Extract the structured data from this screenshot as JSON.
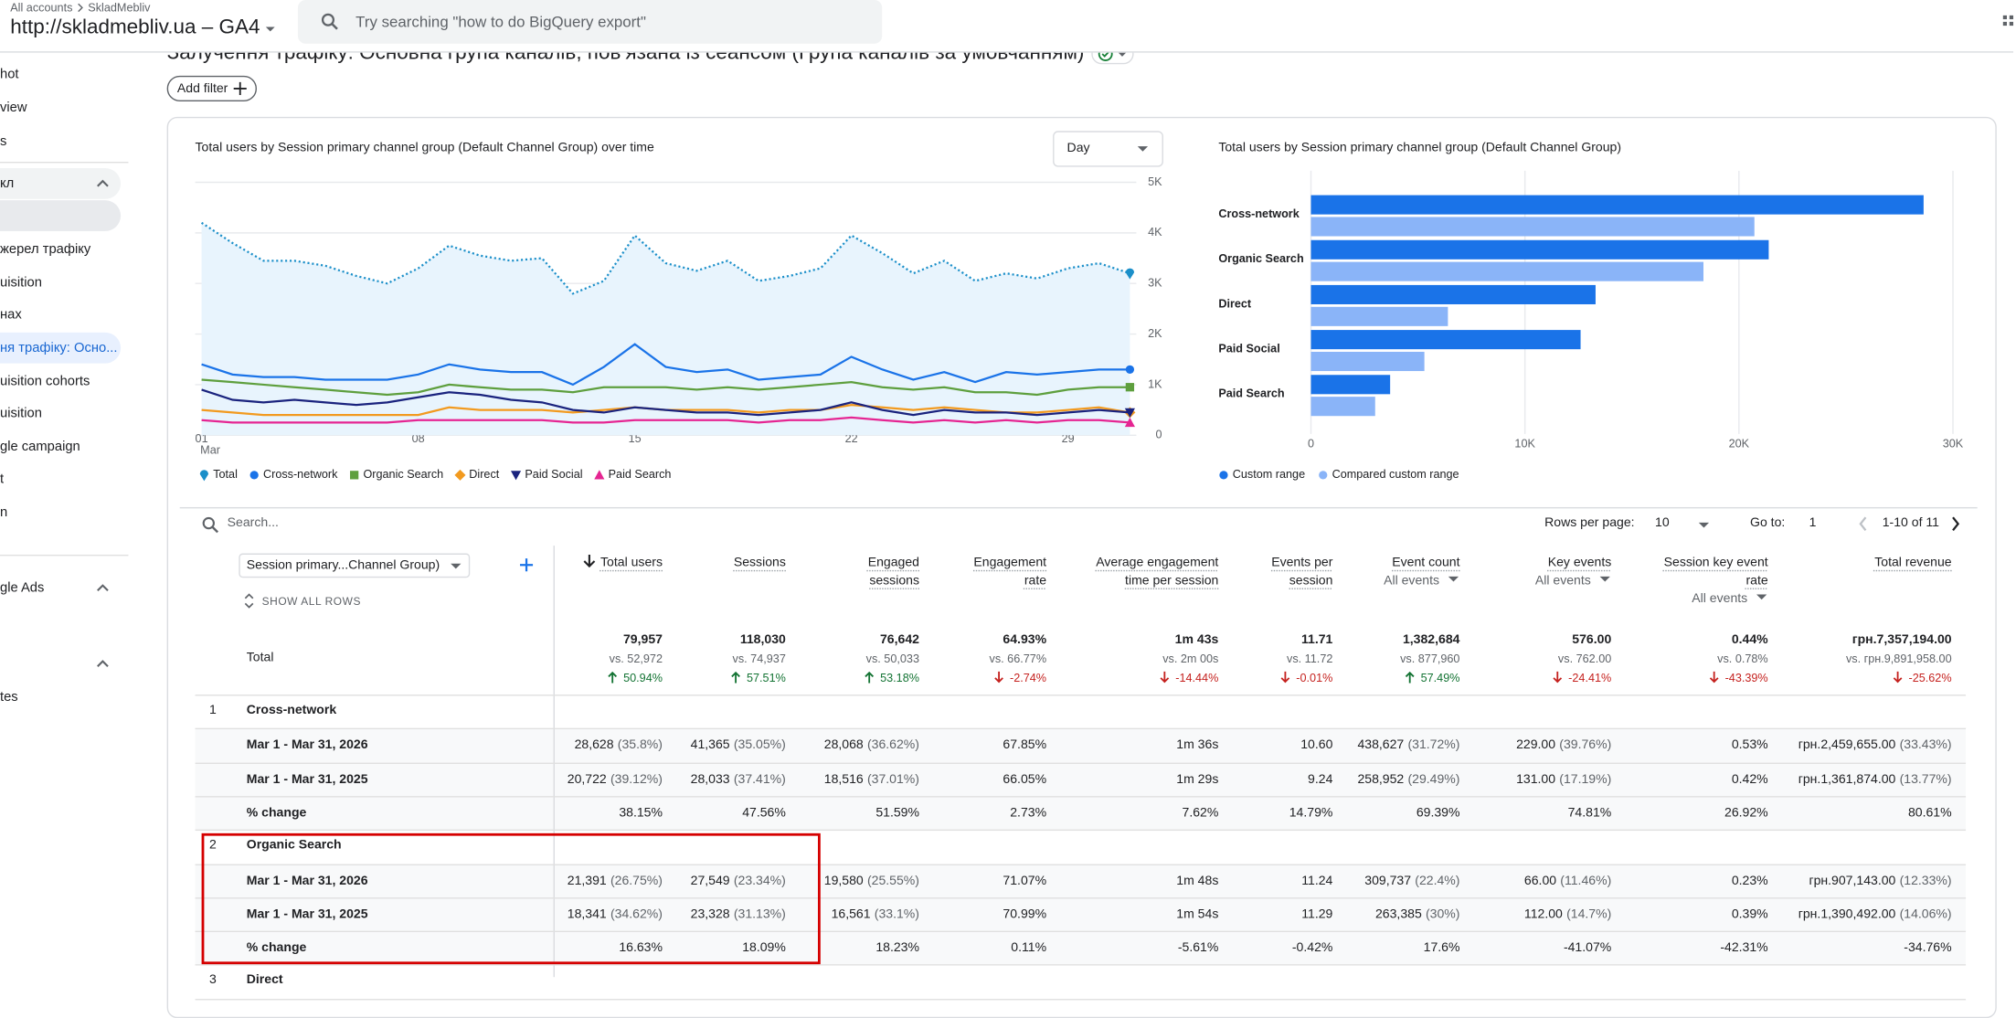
{
  "header": {
    "breadcrumb": [
      "All accounts",
      "SkladMebliv"
    ],
    "property": "http://skladmebliv.ua – GA4",
    "search_placeholder": "Try searching \"how to do BigQuery export\""
  },
  "sidebar": {
    "items": [
      {
        "text": "hot",
        "kind": "item"
      },
      {
        "text": "view",
        "kind": "item"
      },
      {
        "text": "s",
        "kind": "item"
      },
      {
        "text": "кл",
        "kind": "section"
      },
      {
        "kind": "selected"
      },
      {
        "text": "жерел трафіку",
        "kind": "item"
      },
      {
        "text": "uisition",
        "kind": "item"
      },
      {
        "text": "нах",
        "kind": "item"
      },
      {
        "text": "ня трафіку: Осно...",
        "kind": "active"
      },
      {
        "text": "uisition cohorts",
        "kind": "item"
      },
      {
        "text": "uisition",
        "kind": "item"
      },
      {
        "text": "gle campaign",
        "kind": "item"
      },
      {
        "text": "t",
        "kind": "item"
      },
      {
        "text": "n",
        "kind": "item"
      },
      {
        "text": "gle Ads",
        "kind": "section"
      },
      {
        "kind": "section"
      },
      {
        "text": "tes",
        "kind": "item"
      }
    ]
  },
  "page": {
    "title": "Залучення трафіку: Основна група каналів, пов’язана із сеансом (Група каналів за умовчанням)",
    "add_filter": "Add filter"
  },
  "chart_data": [
    {
      "type": "line",
      "title": "Total users by Session primary channel group (Default Channel Group) over time",
      "interval": "Day",
      "x": [
        1,
        2,
        3,
        4,
        5,
        6,
        7,
        8,
        9,
        10,
        11,
        12,
        13,
        14,
        15,
        16,
        17,
        18,
        19,
        20,
        21,
        22,
        23,
        24,
        25,
        26,
        27,
        28,
        29,
        30,
        31
      ],
      "xlim": [
        1,
        31
      ],
      "xticks": [
        {
          "value": 1,
          "label": "01"
        },
        {
          "value": 8,
          "label": "08"
        },
        {
          "value": 15,
          "label": "15"
        },
        {
          "value": 22,
          "label": "22"
        },
        {
          "value": 29,
          "label": "29"
        }
      ],
      "x_tick_sublabel": "Mar",
      "ylim": [
        0,
        5000
      ],
      "yticks": [
        0,
        {
          "value": 1000,
          "label": "1K"
        },
        {
          "value": 2000,
          "label": "2K"
        },
        {
          "value": 3000,
          "label": "3K"
        },
        {
          "value": 4000,
          "label": "4K"
        },
        {
          "value": 5000,
          "label": "5K"
        }
      ],
      "y_axis_side": "right",
      "grid": true,
      "series": [
        {
          "name": "Total",
          "color": "#1b8fc9",
          "marker": "pin",
          "line_style": "dotted",
          "area_color": "#e8f4fd",
          "values": [
            4200,
            3800,
            3450,
            3450,
            3350,
            3150,
            3000,
            3300,
            3750,
            3550,
            3450,
            3500,
            2800,
            3050,
            3950,
            3400,
            3250,
            3450,
            3050,
            3150,
            3300,
            3950,
            3600,
            3200,
            3450,
            3050,
            3200,
            3100,
            3300,
            3400,
            3200
          ]
        },
        {
          "name": "Cross-network",
          "color": "#1a73e8",
          "marker": "circle",
          "values": [
            1400,
            1200,
            1150,
            1150,
            1100,
            1100,
            1100,
            1200,
            1400,
            1300,
            1250,
            1250,
            1000,
            1350,
            1800,
            1350,
            1250,
            1300,
            1100,
            1150,
            1200,
            1550,
            1300,
            1100,
            1250,
            1050,
            1250,
            1200,
            1250,
            1300,
            1300
          ]
        },
        {
          "name": "Organic Search",
          "color": "#5e9f3e",
          "marker": "square",
          "values": [
            1100,
            1050,
            1000,
            950,
            900,
            850,
            800,
            850,
            1000,
            950,
            900,
            900,
            850,
            950,
            950,
            950,
            900,
            950,
            900,
            950,
            1000,
            1050,
            950,
            900,
            950,
            850,
            850,
            800,
            900,
            950,
            950
          ]
        },
        {
          "name": "Direct",
          "color": "#f29a1f",
          "marker": "diamond",
          "values": [
            500,
            450,
            400,
            400,
            400,
            400,
            400,
            400,
            550,
            500,
            500,
            500,
            450,
            500,
            550,
            500,
            500,
            500,
            450,
            500,
            500,
            600,
            550,
            500,
            550,
            500,
            450,
            450,
            500,
            550,
            450
          ]
        },
        {
          "name": "Paid Social",
          "color": "#1a237e",
          "marker": "triangle-down",
          "values": [
            900,
            700,
            650,
            700,
            650,
            600,
            650,
            750,
            850,
            800,
            700,
            650,
            500,
            450,
            550,
            500,
            450,
            450,
            400,
            450,
            500,
            650,
            500,
            400,
            500,
            450,
            450,
            400,
            450,
            500,
            450
          ]
        },
        {
          "name": "Paid Search",
          "color": "#e52592",
          "marker": "triangle",
          "values": [
            300,
            250,
            250,
            250,
            250,
            250,
            250,
            300,
            300,
            300,
            300,
            300,
            250,
            250,
            300,
            300,
            300,
            300,
            250,
            300,
            300,
            350,
            300,
            250,
            300,
            250,
            300,
            250,
            300,
            300,
            250
          ]
        }
      ]
    },
    {
      "type": "bar",
      "orientation": "horizontal",
      "title": "Total users by Session primary channel group (Default Channel Group)",
      "categories": [
        "Cross-network",
        "Organic Search",
        "Direct",
        "Paid Social",
        "Paid Search"
      ],
      "xlim": [
        0,
        30000
      ],
      "xticks": [
        0,
        {
          "value": 10000,
          "label": "10K"
        },
        {
          "value": 20000,
          "label": "20K"
        },
        {
          "value": 30000,
          "label": "30K"
        }
      ],
      "grid": true,
      "series": [
        {
          "name": "Custom range",
          "color": "#1a73e8",
          "values": [
            28628,
            21391,
            13300,
            12600,
            3700
          ]
        },
        {
          "name": "Compared custom range",
          "color": "#8ab4f8",
          "values": [
            20722,
            18341,
            6400,
            5300,
            3000
          ]
        }
      ]
    }
  ],
  "table": {
    "search_placeholder": "Search...",
    "rows_per_page_label": "Rows per page:",
    "rows_per_page": "10",
    "goto_label": "Go to:",
    "goto": "1",
    "pagination": "1-10 of 11",
    "dimension": "Session primary...Channel Group)",
    "show_all": "SHOW ALL ROWS",
    "columns": [
      {
        "title": "Total users",
        "sorted": true
      },
      {
        "title": "Sessions"
      },
      {
        "title": "Engaged sessions"
      },
      {
        "title": "Engagement rate"
      },
      {
        "title": "Average engagement time per session"
      },
      {
        "title": "Events per session"
      },
      {
        "title": "Event count",
        "sub": "All events"
      },
      {
        "title": "Key events",
        "sub": "All events"
      },
      {
        "title": "Session key event rate",
        "sub": "All events"
      },
      {
        "title": "Total revenue"
      }
    ],
    "total": {
      "label": "Total",
      "cells": [
        [
          "79,957",
          "vs. 52,972",
          "50.94%",
          "up"
        ],
        [
          "118,030",
          "vs. 74,937",
          "57.51%",
          "up"
        ],
        [
          "76,642",
          "vs. 50,033",
          "53.18%",
          "up"
        ],
        [
          "64.93%",
          "vs. 66.77%",
          "-2.74%",
          "down"
        ],
        [
          "1m 43s",
          "vs. 2m 00s",
          "-14.44%",
          "down"
        ],
        [
          "11.71",
          "vs. 11.72",
          "-0.01%",
          "down"
        ],
        [
          "1,382,684",
          "vs. 877,960",
          "57.49%",
          "up"
        ],
        [
          "576.00",
          "vs. 762.00",
          "-24.41%",
          "down"
        ],
        [
          "0.44%",
          "vs. 0.78%",
          "-43.39%",
          "down"
        ],
        [
          "грн.7,357,194.00",
          "vs. грн.9,891,958.00",
          "-25.62%",
          "down"
        ]
      ]
    },
    "groups": [
      {
        "index": "1",
        "name": "Cross-network",
        "rows": [
          {
            "label": "Mar 1 - Mar 31, 2026",
            "cells": [
              [
                "28,628",
                "(35.8%)"
              ],
              [
                "41,365",
                "(35.05%)"
              ],
              [
                "28,068",
                "(36.62%)"
              ],
              "67.85%",
              "1m 36s",
              "10.60",
              [
                "438,627",
                "(31.72%)"
              ],
              [
                "229.00",
                "(39.76%)"
              ],
              "0.53%",
              [
                "грн.2,459,655.00",
                "(33.43%)"
              ]
            ]
          },
          {
            "label": "Mar 1 - Mar 31, 2025",
            "cells": [
              [
                "20,722",
                "(39.12%)"
              ],
              [
                "28,033",
                "(37.41%)"
              ],
              [
                "18,516",
                "(37.01%)"
              ],
              "66.05%",
              "1m 29s",
              "9.24",
              [
                "258,952",
                "(29.49%)"
              ],
              [
                "131.00",
                "(17.19%)"
              ],
              "0.42%",
              [
                "грн.1,361,874.00",
                "(13.77%)"
              ]
            ]
          },
          {
            "label": "% change",
            "cells": [
              "38.15%",
              "47.56%",
              "51.59%",
              "2.73%",
              "7.62%",
              "14.79%",
              "69.39%",
              "74.81%",
              "26.92%",
              "80.61%"
            ]
          }
        ]
      },
      {
        "index": "2",
        "name": "Organic Search",
        "highlight": true,
        "rows": [
          {
            "label": "Mar 1 - Mar 31, 2026",
            "cells": [
              [
                "21,391",
                "(26.75%)"
              ],
              [
                "27,549",
                "(23.34%)"
              ],
              [
                "19,580",
                "(25.55%)"
              ],
              "71.07%",
              "1m 48s",
              "11.24",
              [
                "309,737",
                "(22.4%)"
              ],
              [
                "66.00",
                "(11.46%)"
              ],
              "0.23%",
              [
                "грн.907,143.00",
                "(12.33%)"
              ]
            ]
          },
          {
            "label": "Mar 1 - Mar 31, 2025",
            "cells": [
              [
                "18,341",
                "(34.62%)"
              ],
              [
                "23,328",
                "(31.13%)"
              ],
              [
                "16,561",
                "(33.1%)"
              ],
              "70.99%",
              "1m 54s",
              "11.29",
              [
                "263,385",
                "(30%)"
              ],
              [
                "112.00",
                "(14.7%)"
              ],
              "0.39%",
              [
                "грн.1,390,492.00",
                "(14.06%)"
              ]
            ]
          },
          {
            "label": "% change",
            "cells": [
              "16.63%",
              "18.09%",
              "18.23%",
              "0.11%",
              "-5.61%",
              "-0.42%",
              "17.6%",
              "-41.07%",
              "-42.31%",
              "-34.76%"
            ]
          }
        ]
      },
      {
        "index": "3",
        "name": "Direct",
        "rows": []
      }
    ]
  }
}
